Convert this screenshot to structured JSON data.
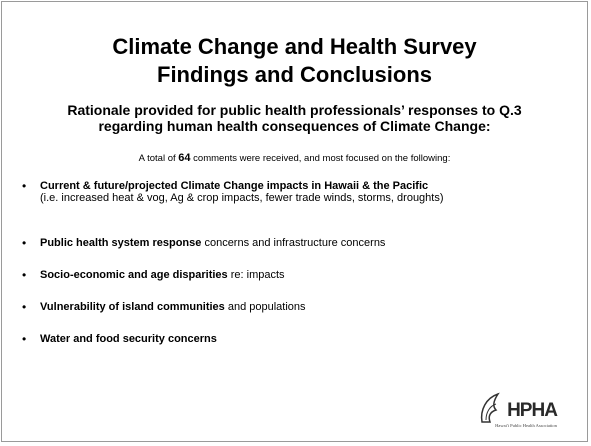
{
  "title": [
    "Climate Change and Health Survey",
    "Findings and Conclusions"
  ],
  "subtitle": "Rationale provided for public health professionals’ responses to Q.3 regarding human health consequences of Climate Change:",
  "summary": {
    "before": "A total of",
    "count": 64,
    "after": "comments were received, and most focused on the following:"
  },
  "bullets": [
    {
      "bold": "Current & future/projected Climate Change impacts in Hawaii & the Pacific",
      "text": "(i.e. increased heat & vog, Ag & crop impacts, fewer trade winds, storms, droughts)"
    },
    {
      "bold": "Public health system response",
      "text": "concerns and infrastructure concerns"
    },
    {
      "bold": "Socio-economic and age disparities",
      "text": "re: impacts"
    },
    {
      "bold": "Vulnerability of island communities",
      "text": "and populations"
    },
    {
      "bold": "Water and food security concerns"
    }
  ],
  "logo": {
    "name": "HPHA",
    "caption": "Hawai'i Public Health Association"
  }
}
